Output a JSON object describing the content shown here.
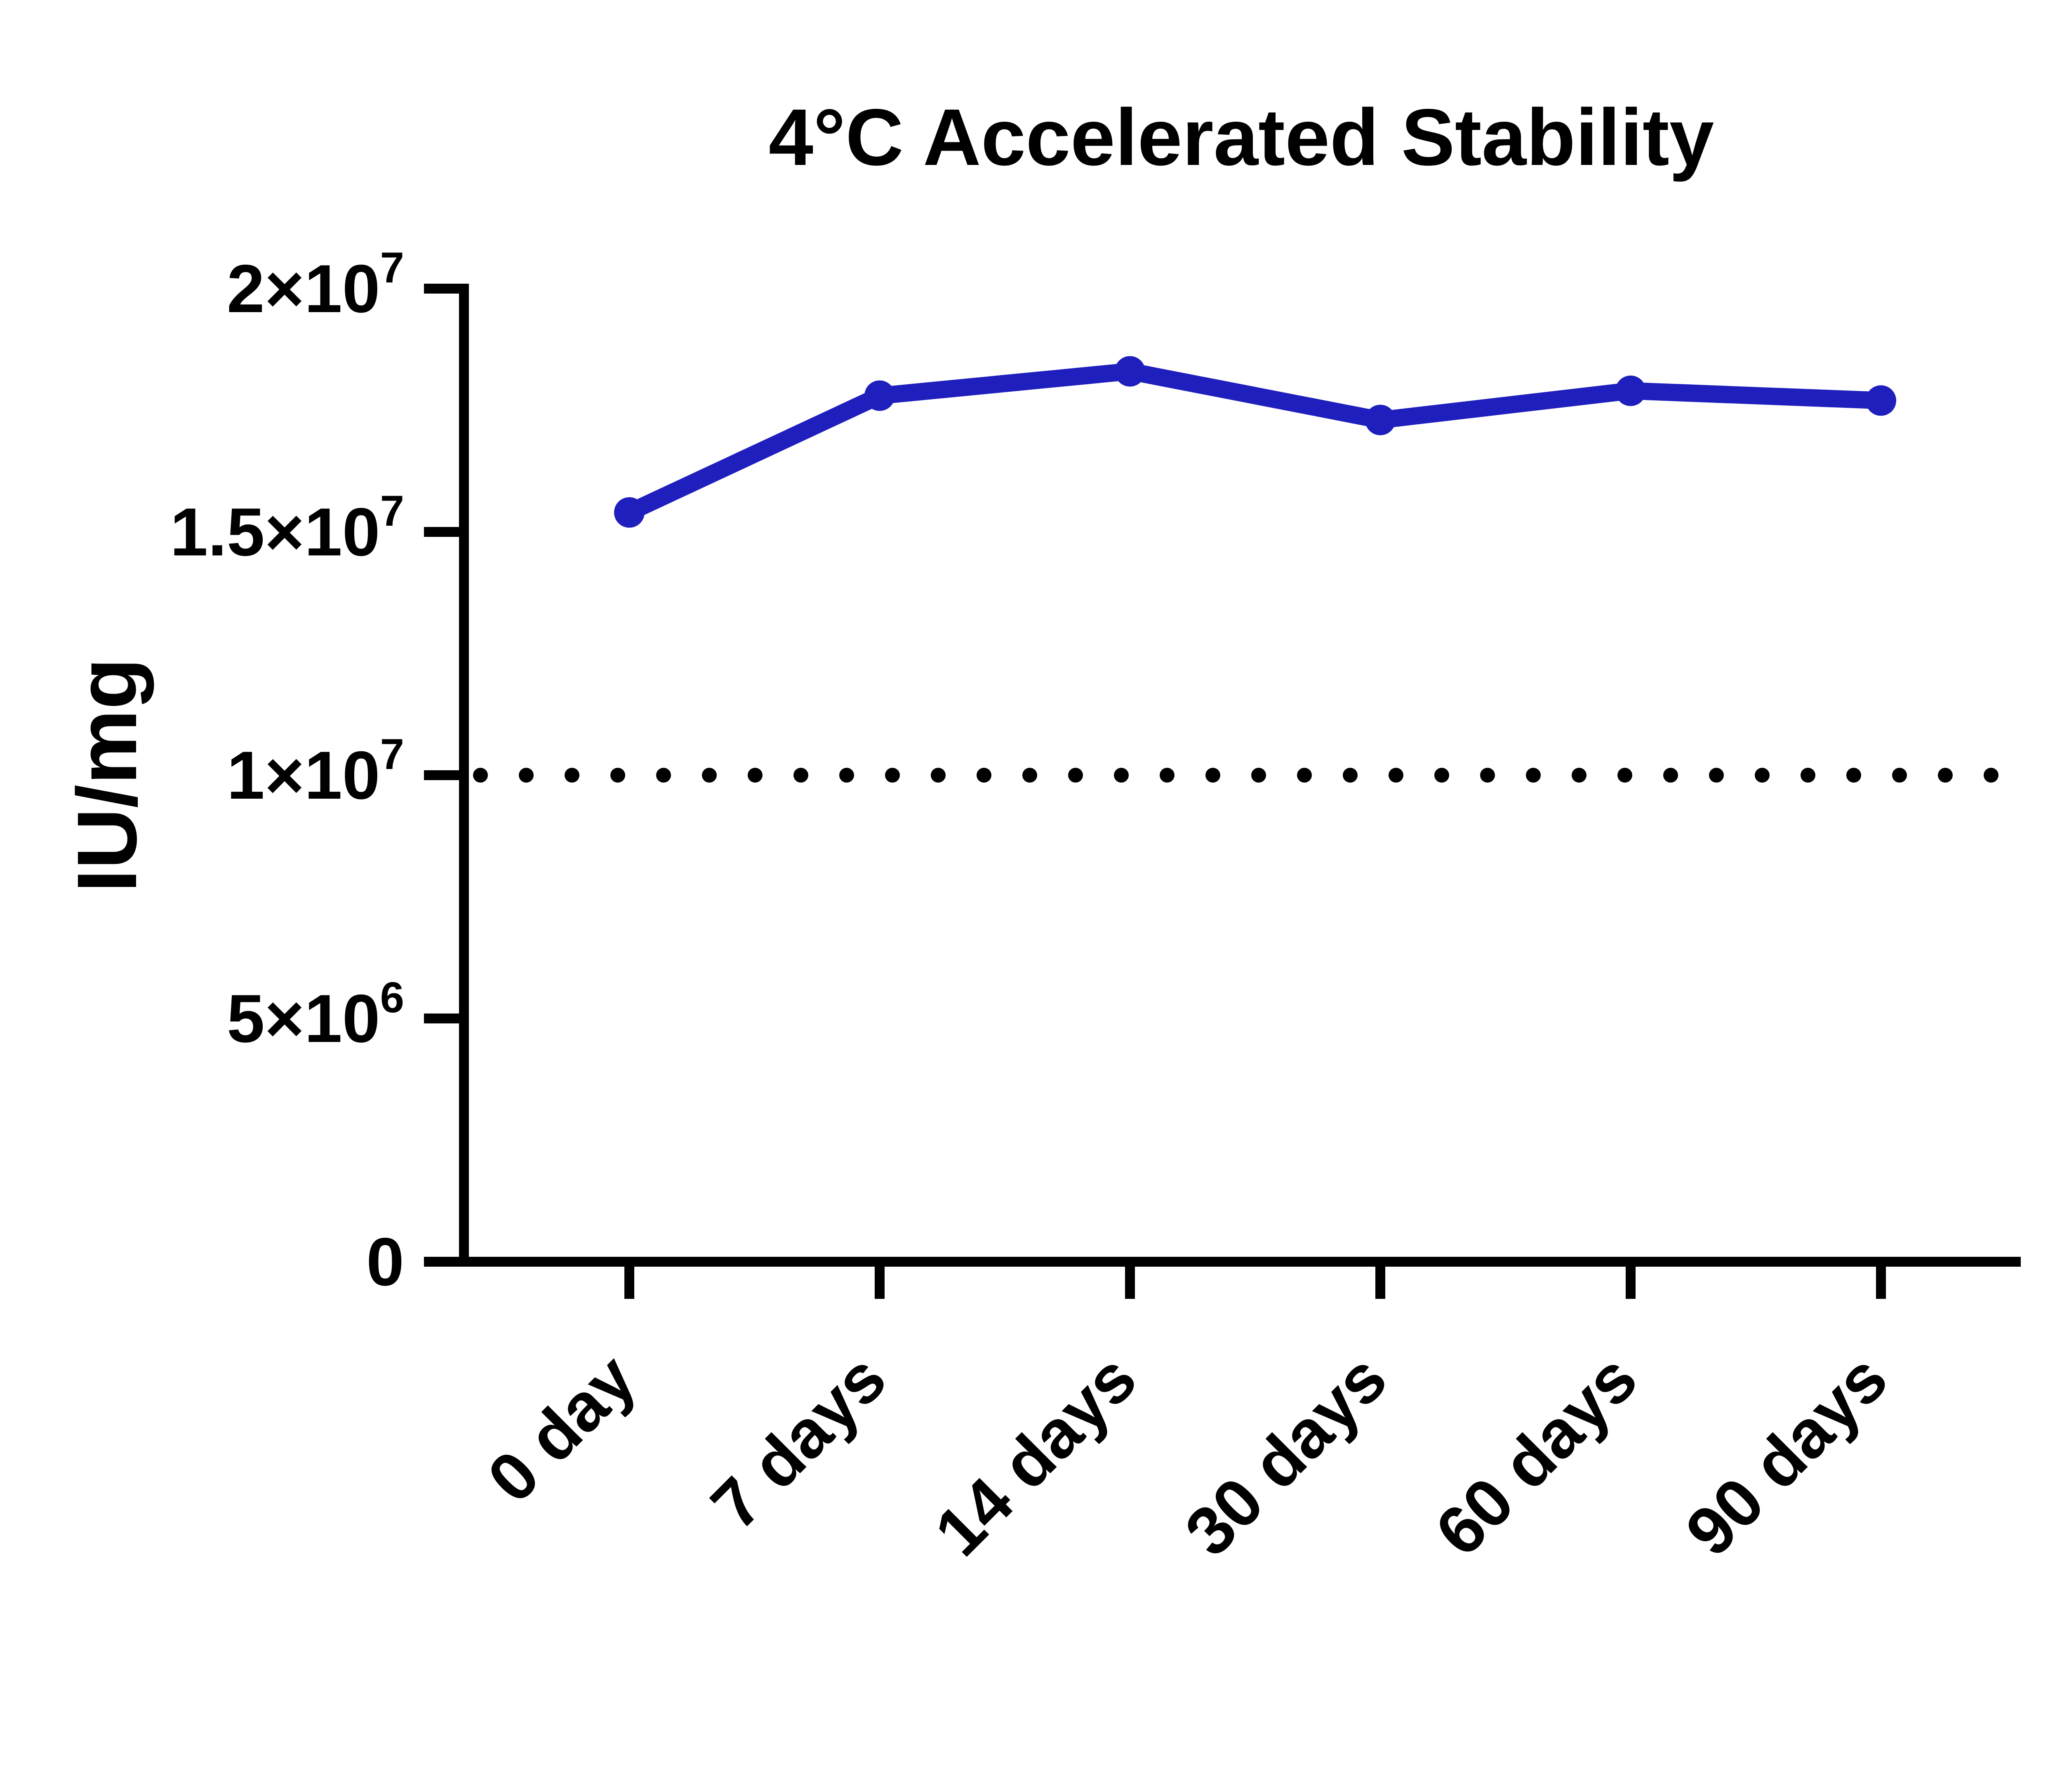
{
  "page": {
    "background_color": "#ffffff",
    "text_color": "#000000"
  },
  "chart_data": {
    "type": "line",
    "title": "4°C Accelerated Stability",
    "ylabel": "IU/mg",
    "xlabel": "",
    "categories": [
      "0 day",
      "7 days",
      "14 days",
      "30 days",
      "60 days",
      "90 days"
    ],
    "series": [
      {
        "name": "4°C Accelerated Stability",
        "color": "#1F1FBE",
        "marker": "circle",
        "values": [
          15400000,
          17800000,
          18300000,
          17300000,
          17900000,
          17700000
        ]
      }
    ],
    "reference_line": {
      "value": 10000000,
      "style": "dotted",
      "color": "#000000"
    },
    "ylim": [
      0,
      20000000
    ],
    "yticks": [
      {
        "value": 0,
        "base": "0",
        "sup": ""
      },
      {
        "value": 5000000,
        "base": "5×10",
        "sup": "6"
      },
      {
        "value": 10000000,
        "base": "1×10",
        "sup": "7"
      },
      {
        "value": 15000000,
        "base": "1.5×10",
        "sup": "7"
      },
      {
        "value": 20000000,
        "base": "2×10",
        "sup": "7"
      }
    ],
    "x_tick_rotation_deg": 45,
    "grid": false,
    "legend_position": "none",
    "axis_color": "#000000"
  }
}
